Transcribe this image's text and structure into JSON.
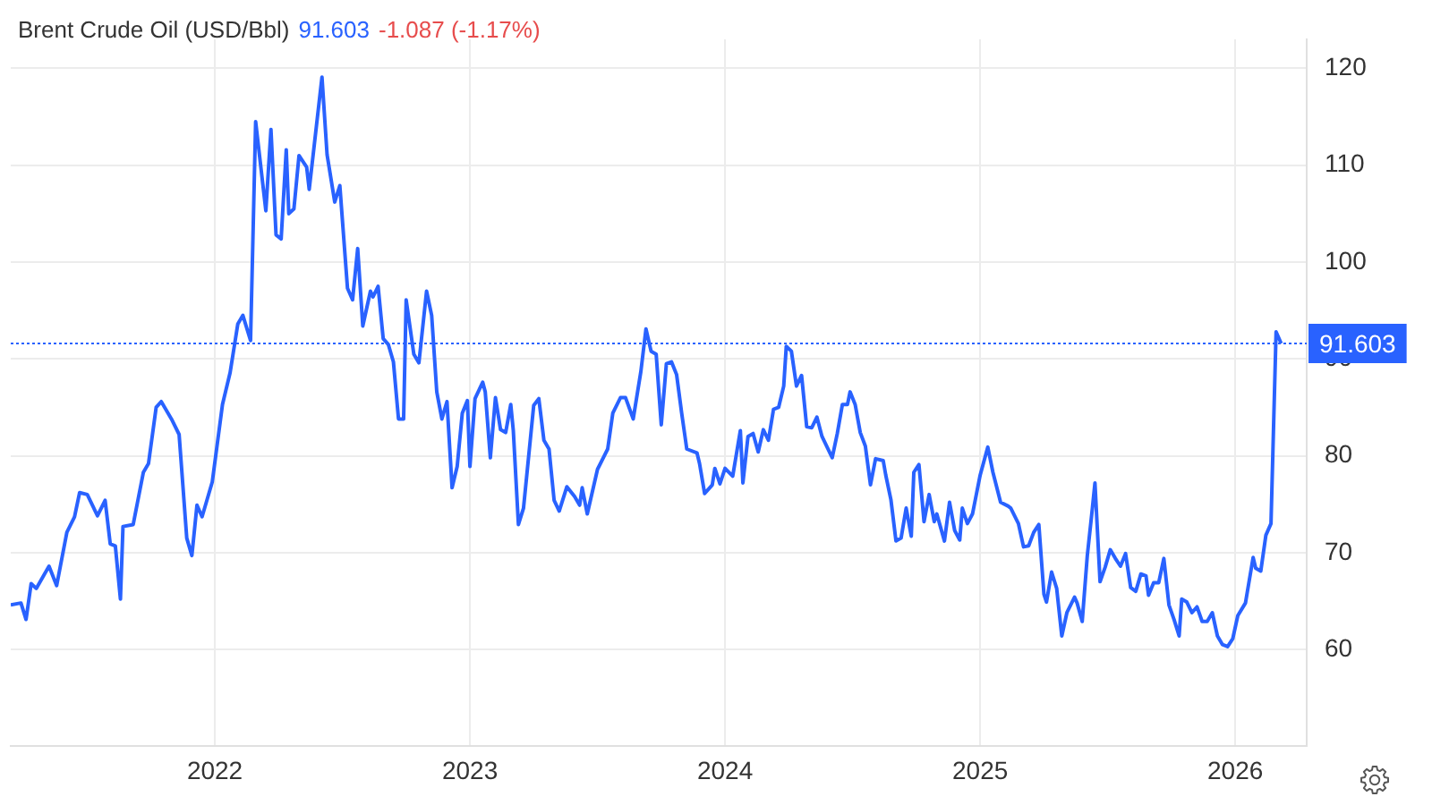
{
  "chart_data": {
    "type": "line",
    "title": "Brent Crude Oil (USD/Bbl)",
    "annotations": [
      "91.603",
      "-1.087 (-1.17%)"
    ],
    "x": [
      2021.2,
      2021.24,
      2021.26,
      2021.28,
      2021.3,
      2021.35,
      2021.38,
      2021.42,
      2021.45,
      2021.47,
      2021.5,
      2021.54,
      2021.57,
      2021.59,
      2021.61,
      2021.63,
      2021.64,
      2021.68,
      2021.72,
      2021.74,
      2021.77,
      2021.79,
      2021.83,
      2021.86,
      2021.89,
      2021.91,
      2021.93,
      2021.95,
      2021.99,
      2022.03,
      2022.06,
      2022.09,
      2022.11,
      2022.14,
      2022.16,
      2022.2,
      2022.22,
      2022.24,
      2022.26,
      2022.28,
      2022.29,
      2022.31,
      2022.33,
      2022.36,
      2022.37,
      2022.42,
      2022.44,
      2022.47,
      2022.49,
      2022.52,
      2022.54,
      2022.56,
      2022.58,
      2022.61,
      2022.62,
      2022.64,
      2022.66,
      2022.68,
      2022.7,
      2022.72,
      2022.74,
      2022.75,
      2022.78,
      2022.8,
      2022.83,
      2022.85,
      2022.87,
      2022.89,
      2022.91,
      2022.93,
      2022.95,
      2022.97,
      2022.99,
      2023.0,
      2023.02,
      2023.05,
      2023.06,
      2023.08,
      2023.1,
      2023.12,
      2023.14,
      2023.16,
      2023.17,
      2023.19,
      2023.21,
      2023.25,
      2023.27,
      2023.29,
      2023.31,
      2023.33,
      2023.35,
      2023.38,
      2023.41,
      2023.43,
      2023.44,
      2023.46,
      2023.5,
      2023.54,
      2023.56,
      2023.59,
      2023.61,
      2023.64,
      2023.67,
      2023.69,
      2023.71,
      2023.73,
      2023.75,
      2023.77,
      2023.79,
      2023.81,
      2023.83,
      2023.85,
      2023.89,
      2023.9,
      2023.92,
      2023.95,
      2023.96,
      2023.98,
      2024.0,
      2024.03,
      2024.06,
      2024.07,
      2024.09,
      2024.11,
      2024.13,
      2024.15,
      2024.17,
      2024.19,
      2024.21,
      2024.23,
      2024.24,
      2024.26,
      2024.28,
      2024.3,
      2024.32,
      2024.34,
      2024.36,
      2024.38,
      2024.42,
      2024.44,
      2024.46,
      2024.48,
      2024.49,
      2024.51,
      2024.53,
      2024.55,
      2024.57,
      2024.59,
      2024.62,
      2024.63,
      2024.65,
      2024.67,
      2024.69,
      2024.71,
      2024.73,
      2024.74,
      2024.76,
      2024.78,
      2024.8,
      2024.82,
      2024.83,
      2024.86,
      2024.88,
      2024.9,
      2024.92,
      2024.93,
      2024.95,
      2024.97,
      2025.0,
      2025.03,
      2025.05,
      2025.08,
      2025.11,
      2025.12,
      2025.15,
      2025.17,
      2025.19,
      2025.21,
      2025.23,
      2025.25,
      2025.26,
      2025.28,
      2025.3,
      2025.32,
      2025.34,
      2025.37,
      2025.38,
      2025.4,
      2025.42,
      2025.44,
      2025.45,
      2025.47,
      2025.49,
      2025.51,
      2025.53,
      2025.55,
      2025.57,
      2025.59,
      2025.61,
      2025.63,
      2025.65,
      2025.66,
      2025.68,
      2025.7,
      2025.72,
      2025.74,
      2025.76,
      2025.78,
      2025.79,
      2025.81,
      2025.83,
      2025.85,
      2025.87,
      2025.89,
      2025.91,
      2025.93,
      2025.95,
      2025.97,
      2025.99,
      2026.01,
      2026.04,
      2026.07,
      2026.08,
      2026.1,
      2026.12,
      2026.14,
      2026.16,
      2026.18
    ],
    "values": [
      64.6,
      64.8,
      63.1,
      66.8,
      66.3,
      68.6,
      66.6,
      72.1,
      73.7,
      76.2,
      76.0,
      73.8,
      75.4,
      70.9,
      70.7,
      65.2,
      72.7,
      72.9,
      78.3,
      79.2,
      85.0,
      85.6,
      83.8,
      82.2,
      71.5,
      69.7,
      74.9,
      73.7,
      77.3,
      85.3,
      88.6,
      93.6,
      94.5,
      91.9,
      114.5,
      105.3,
      113.7,
      102.8,
      102.4,
      111.6,
      105.0,
      105.5,
      111.0,
      109.8,
      107.5,
      119.1,
      111.1,
      106.2,
      107.9,
      97.3,
      96.1,
      101.4,
      93.4,
      97.0,
      96.4,
      97.5,
      92.1,
      91.5,
      89.7,
      83.8,
      83.8,
      96.1,
      90.5,
      89.6,
      97.0,
      94.5,
      86.6,
      83.8,
      85.6,
      76.7,
      78.9,
      84.4,
      85.7,
      78.9,
      85.9,
      87.6,
      86.6,
      79.8,
      86.0,
      82.7,
      82.4,
      85.3,
      82.6,
      72.9,
      74.6,
      85.2,
      85.9,
      81.6,
      80.7,
      75.4,
      74.3,
      76.8,
      75.8,
      74.9,
      76.7,
      74.0,
      78.6,
      80.7,
      84.4,
      86.0,
      86.0,
      83.8,
      88.7,
      93.1,
      90.8,
      90.5,
      83.2,
      89.5,
      89.7,
      88.4,
      84.4,
      80.7,
      80.3,
      79.2,
      76.1,
      77.0,
      78.7,
      77.1,
      78.7,
      77.9,
      82.6,
      77.2,
      82.0,
      82.3,
      80.4,
      82.7,
      81.6,
      84.8,
      85.0,
      87.2,
      91.3,
      90.8,
      87.2,
      88.3,
      83.0,
      82.9,
      84.0,
      82.0,
      79.8,
      82.3,
      85.3,
      85.3,
      86.6,
      85.3,
      82.4,
      81.0,
      77.0,
      79.7,
      79.5,
      78.0,
      75.5,
      71.2,
      71.5,
      74.6,
      71.7,
      78.3,
      79.1,
      73.2,
      76.0,
      73.2,
      74.0,
      71.2,
      75.2,
      72.3,
      71.3,
      74.6,
      73.0,
      74.0,
      78.0,
      80.9,
      78.3,
      75.2,
      74.8,
      74.6,
      73.0,
      70.6,
      70.7,
      72.1,
      72.9,
      65.7,
      64.9,
      68.0,
      66.3,
      61.4,
      63.8,
      65.4,
      64.8,
      62.9,
      69.7,
      74.6,
      77.2,
      67.0,
      68.5,
      70.3,
      69.4,
      68.6,
      69.9,
      66.4,
      66.0,
      67.8,
      67.6,
      65.6,
      66.9,
      66.9,
      69.4,
      64.6,
      63.1,
      61.4,
      65.2,
      64.9,
      63.8,
      64.4,
      62.9,
      62.9,
      63.8,
      61.4,
      60.5,
      60.3,
      61.1,
      63.5,
      64.8,
      69.5,
      68.4,
      68.1,
      71.8,
      73.0,
      92.8,
      91.603
    ],
    "color": "#2962ff",
    "xlim": [
      2021.2,
      2026.28
    ],
    "xticks": [
      2022,
      2023,
      2024,
      2025,
      2026
    ],
    "ylim": [
      50,
      123
    ],
    "yticks": [
      60,
      70,
      80,
      90,
      100,
      110,
      120
    ],
    "ref_lines": [
      {
        "axis": "y",
        "value": 91.603,
        "label": "91.603",
        "color": "#2962ff",
        "line_style": "dotted"
      }
    ],
    "grid": true,
    "marker": "none",
    "line_style": "solid",
    "legend": false
  }
}
